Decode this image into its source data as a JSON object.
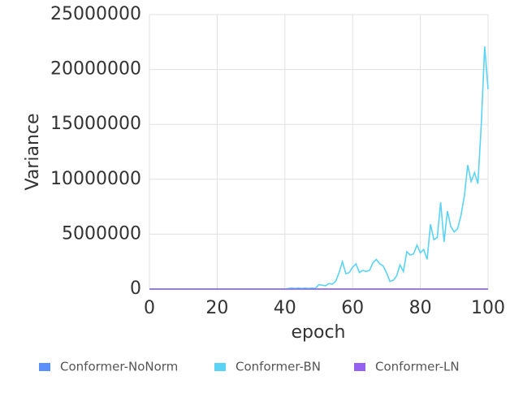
{
  "chart_data": {
    "type": "line",
    "x_label": "epoch",
    "y_label": "Variance",
    "x": [
      0,
      1,
      2,
      3,
      4,
      5,
      6,
      7,
      8,
      9,
      10,
      11,
      12,
      13,
      14,
      15,
      16,
      17,
      18,
      19,
      20,
      21,
      22,
      23,
      24,
      25,
      26,
      27,
      28,
      29,
      30,
      31,
      32,
      33,
      34,
      35,
      36,
      37,
      38,
      39,
      40,
      41,
      42,
      43,
      44,
      45,
      46,
      47,
      48,
      49,
      50,
      51,
      52,
      53,
      54,
      55,
      56,
      57,
      58,
      59,
      60,
      61,
      62,
      63,
      64,
      65,
      66,
      67,
      68,
      69,
      70,
      71,
      72,
      73,
      74,
      75,
      76,
      77,
      78,
      79,
      80,
      81,
      82,
      83,
      84,
      85,
      86,
      87,
      88,
      89,
      90,
      91,
      92,
      93,
      94,
      95,
      96,
      97,
      98,
      99,
      100
    ],
    "series": [
      {
        "name": "Conformer-NoNorm",
        "color": "#5b8ff9",
        "values": [
          0,
          0,
          0,
          0,
          0,
          0,
          0,
          0,
          0,
          0,
          0,
          0,
          0,
          0,
          0,
          0,
          0,
          0,
          0,
          0,
          0,
          0,
          0,
          0,
          0,
          0,
          0,
          0,
          0,
          0,
          0,
          0,
          0,
          0,
          0,
          0,
          0,
          0,
          0,
          0,
          0,
          0,
          0,
          0,
          0,
          0,
          0,
          0,
          0,
          0,
          0,
          0,
          0,
          0,
          0,
          0,
          0,
          0,
          0,
          0,
          0,
          0,
          0,
          0,
          0,
          0,
          0,
          0,
          0,
          0,
          0,
          0,
          0,
          0,
          0,
          0,
          0,
          0,
          0,
          0,
          0,
          0,
          0,
          0,
          0,
          0,
          0,
          0,
          0,
          0,
          0,
          0,
          0,
          0,
          0,
          0,
          0,
          0,
          0,
          0,
          0
        ]
      },
      {
        "name": "Conformer-BN",
        "color": "#5ad3f5",
        "values": [
          0,
          0,
          0,
          0,
          0,
          0,
          0,
          0,
          0,
          0,
          0,
          0,
          0,
          0,
          0,
          0,
          0,
          0,
          0,
          0,
          0,
          0,
          0,
          0,
          0,
          0,
          0,
          0,
          0,
          0,
          0,
          0,
          0,
          0,
          0,
          0,
          0,
          0,
          0,
          0,
          0,
          50000,
          100000,
          50000,
          100000,
          50000,
          100000,
          50000,
          100000,
          50000,
          400000,
          350000,
          300000,
          500000,
          450000,
          700000,
          1500000,
          2500000,
          1400000,
          1500000,
          2000000,
          2300000,
          1500000,
          1700000,
          1600000,
          1700000,
          2400000,
          2700000,
          2300000,
          2100000,
          1500000,
          700000,
          800000,
          1200000,
          2200000,
          1600000,
          3400000,
          3100000,
          3200000,
          4000000,
          3300000,
          3600000,
          2700000,
          5900000,
          4500000,
          4700000,
          7900000,
          4300000,
          7100000,
          5700000,
          5200000,
          5500000,
          6700000,
          8500000,
          11300000,
          9800000,
          10600000,
          9600000,
          15000000,
          22100000,
          18200000
        ]
      },
      {
        "name": "Conformer-LN",
        "color": "#9661f0",
        "values": [
          0,
          0,
          0,
          0,
          0,
          0,
          0,
          0,
          0,
          0,
          0,
          0,
          0,
          0,
          0,
          0,
          0,
          0,
          0,
          0,
          0,
          0,
          0,
          0,
          0,
          0,
          0,
          0,
          0,
          0,
          0,
          0,
          0,
          0,
          0,
          0,
          0,
          0,
          0,
          0,
          0,
          0,
          0,
          0,
          0,
          0,
          0,
          0,
          0,
          0,
          0,
          0,
          0,
          0,
          0,
          0,
          0,
          0,
          0,
          0,
          0,
          0,
          0,
          0,
          0,
          0,
          0,
          0,
          0,
          0,
          0,
          0,
          0,
          0,
          0,
          0,
          0,
          0,
          0,
          0,
          0,
          0,
          0,
          0,
          0,
          0,
          0,
          0,
          0,
          0,
          0,
          0,
          0,
          0,
          0,
          0,
          0,
          0,
          0,
          0,
          0
        ]
      }
    ],
    "xlim": [
      0,
      100
    ],
    "xticks": [
      0,
      20,
      40,
      60,
      80,
      100
    ],
    "ylim": [
      0,
      25000000
    ],
    "yticks": [
      0,
      5000000,
      10000000,
      15000000,
      20000000,
      25000000
    ],
    "grid": true,
    "legend": "bottom"
  }
}
